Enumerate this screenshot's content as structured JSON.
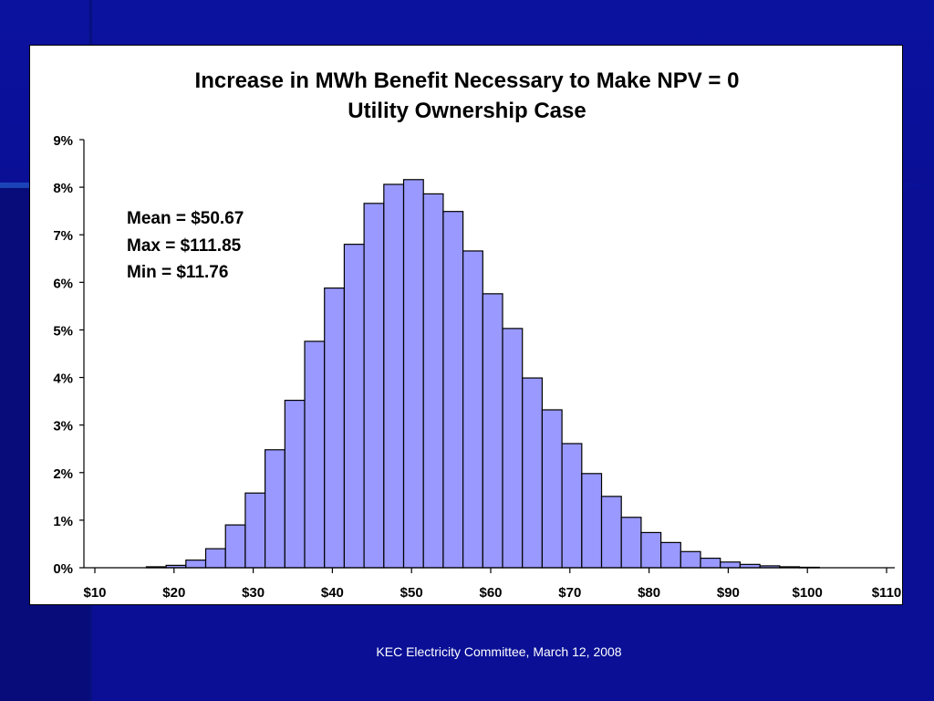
{
  "slide": {
    "footer": "KEC Electricity Committee, March 12, 2008",
    "background_color": "#0a0f96"
  },
  "chart": {
    "title_line1": "Increase in MWh Benefit Necessary to Make NPV = 0",
    "title_line2": "Utility Ownership Case",
    "stats": {
      "mean": "Mean = $50.67",
      "max": "Max = $111.85",
      "min": "Min = $11.76"
    }
  },
  "chart_data": {
    "type": "bar",
    "title": "Increase in MWh Benefit Necessary to Make NPV = 0",
    "subtitle": "Utility Ownership Case",
    "xlabel": "",
    "ylabel": "",
    "bar_color": "#9999ff",
    "bar_outline": "#000000",
    "bin_width": 2.5,
    "x_range": [
      10,
      110
    ],
    "ylim": [
      0,
      9
    ],
    "x_ticks": [
      10,
      20,
      30,
      40,
      50,
      60,
      70,
      80,
      90,
      100,
      110
    ],
    "x_tick_labels": [
      "$10",
      "$20",
      "$30",
      "$40",
      "$50",
      "$60",
      "$70",
      "$80",
      "$90",
      "$100",
      "$110"
    ],
    "y_ticks": [
      0,
      1,
      2,
      3,
      4,
      5,
      6,
      7,
      8,
      9
    ],
    "y_tick_labels": [
      "0%",
      "1%",
      "2%",
      "3%",
      "4%",
      "5%",
      "6%",
      "7%",
      "8%",
      "9%"
    ],
    "bin_starts": [
      16.5,
      19,
      21.5,
      24,
      26.5,
      29,
      31.5,
      34,
      36.5,
      39,
      41.5,
      44,
      46.5,
      49,
      51.5,
      54,
      56.5,
      59,
      61.5,
      64,
      66.5,
      69,
      71.5,
      74,
      76.5,
      79,
      81.5,
      84,
      86.5,
      89,
      91.5,
      94,
      96.5,
      99
    ],
    "values": [
      0.02,
      0.05,
      0.16,
      0.4,
      0.9,
      1.57,
      2.48,
      3.52,
      4.76,
      5.88,
      6.8,
      7.66,
      8.06,
      8.16,
      7.86,
      7.49,
      6.66,
      5.76,
      5.03,
      3.99,
      3.32,
      2.61,
      1.98,
      1.5,
      1.06,
      0.74,
      0.53,
      0.34,
      0.2,
      0.12,
      0.07,
      0.04,
      0.02,
      0.01
    ],
    "grid": false,
    "legend": "none"
  }
}
